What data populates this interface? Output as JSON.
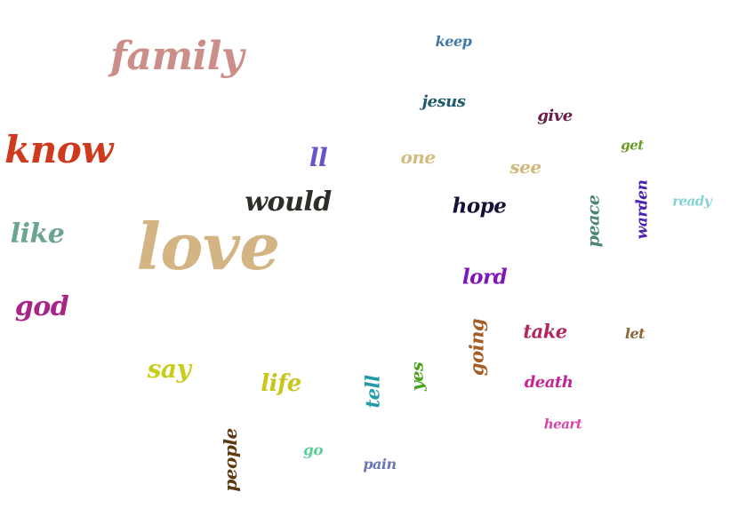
{
  "words": [
    {
      "text": "love",
      "color": "#d3b583"
    },
    {
      "text": "family",
      "color": "#cc8e88"
    },
    {
      "text": "know",
      "color": "#cf3a1f"
    },
    {
      "text": "would",
      "color": "#2e2d28"
    },
    {
      "text": "like",
      "color": "#6aa590"
    },
    {
      "text": "god",
      "color": "#a82585"
    },
    {
      "text": "say",
      "color": "#c8cd1a"
    },
    {
      "text": "life",
      "color": "#c9c51c"
    },
    {
      "text": "hope",
      "color": "#151035"
    },
    {
      "text": "lord",
      "color": "#7f16b9"
    },
    {
      "text": "ll",
      "color": "#6654cd"
    },
    {
      "text": "one",
      "color": "#d4bc7f"
    },
    {
      "text": "see",
      "color": "#d2b77c"
    },
    {
      "text": "jesus",
      "color": "#1f5b6c"
    },
    {
      "text": "give",
      "color": "#6a1b4a"
    },
    {
      "text": "keep",
      "color": "#3f78a3"
    },
    {
      "text": "get",
      "color": "#6a9b24"
    },
    {
      "text": "ready",
      "color": "#86d3d7"
    },
    {
      "text": "peace",
      "color": "#4d8477"
    },
    {
      "text": "warden",
      "color": "#4a21b0"
    },
    {
      "text": "take",
      "color": "#b02660"
    },
    {
      "text": "let",
      "color": "#8f6636"
    },
    {
      "text": "death",
      "color": "#c42793"
    },
    {
      "text": "heart",
      "color": "#d447a8"
    },
    {
      "text": "going",
      "color": "#a45d24"
    },
    {
      "text": "yes",
      "color": "#46a21b"
    },
    {
      "text": "tell",
      "color": "#239ca8"
    },
    {
      "text": "go",
      "color": "#5bd29c"
    },
    {
      "text": "pain",
      "color": "#6c78b4"
    },
    {
      "text": "people",
      "color": "#5e3a12"
    }
  ]
}
